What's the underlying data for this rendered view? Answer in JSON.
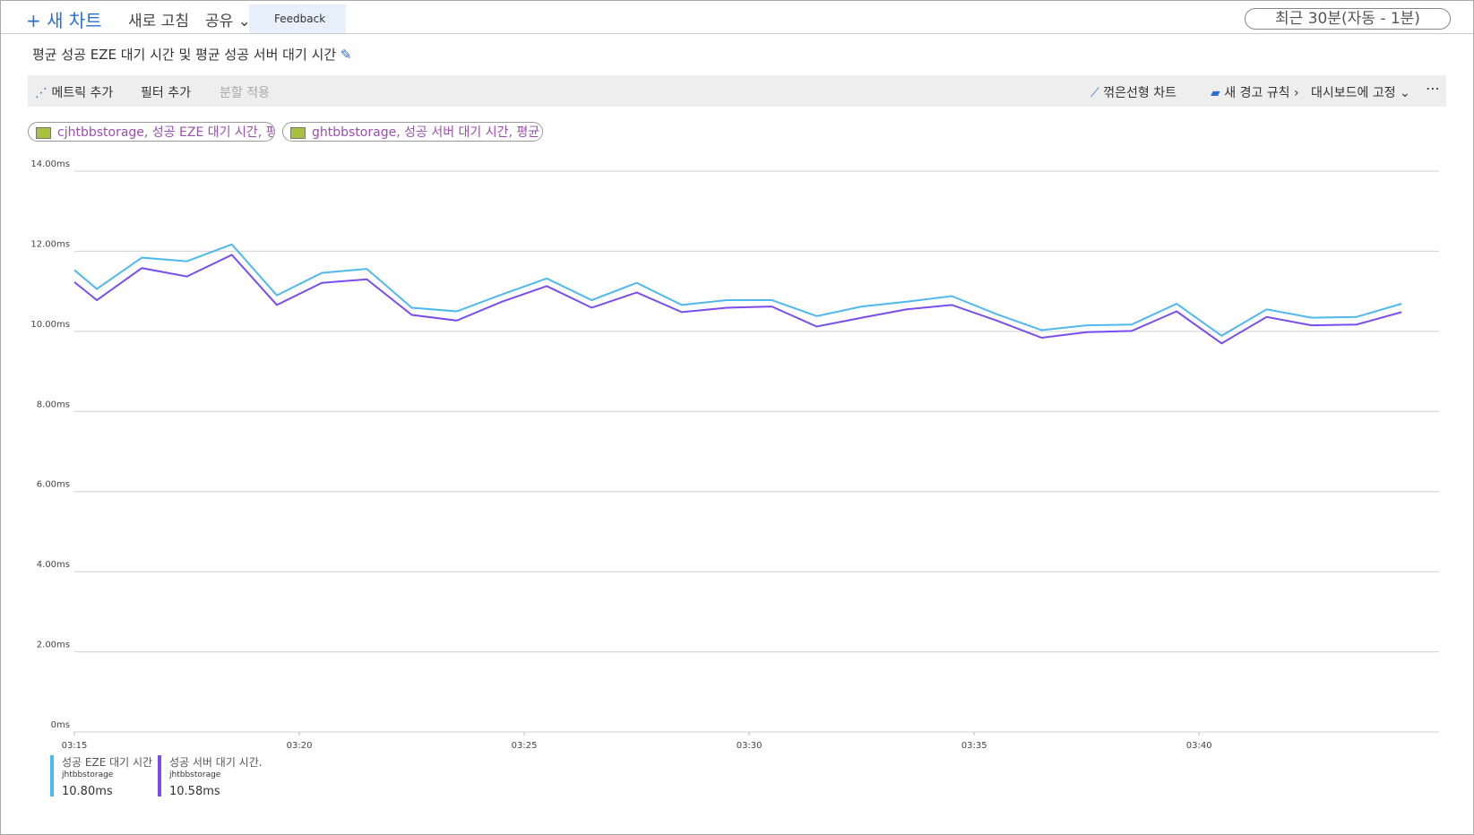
{
  "toolbar": {
    "new_chart": "새 차트",
    "refresh": "새로 고침",
    "share": "공유",
    "feedback": "Feedback",
    "time_range": "최근 30분(자동 - 1분)"
  },
  "chart_title": "평균 성공 EZE 대기 시간 및 평균 성공 서버 대기 시간",
  "chart_toolbar": {
    "add_metric": "메트릭 추가",
    "add_filter": "필터 추가",
    "apply_splitting": "분할 적용",
    "chart_type": "꺾은선형 차트",
    "new_alert": "새 경고 규칙",
    "pin": "대시보드에 고정"
  },
  "metric_chips": [
    "cjhtbbstorage, 성공 EZE 대기 시간, 평균",
    "ghtbbstorage, 성공 서버 대기 시간, 평균"
  ],
  "legend": [
    {
      "resource": "jhtbbstorage",
      "value": "10.80ms"
    },
    {
      "resource": "jhtbbstorage",
      "value": "10.58ms"
    }
  ],
  "chart_data": {
    "type": "line",
    "x": [
      "03:15:00",
      "03:15:30",
      "03:16:30",
      "03:17:30",
      "03:18:30",
      "03:19:30",
      "03:20:30",
      "03:21:30",
      "03:22:30",
      "03:23:30",
      "03:24:30",
      "03:25:30",
      "03:26:30",
      "03:27:30",
      "03:28:30",
      "03:29:30",
      "03:30:30",
      "03:31:30",
      "03:32:30",
      "03:33:30",
      "03:34:30",
      "03:35:30",
      "03:36:30",
      "03:37:30",
      "03:38:30",
      "03:39:30",
      "03:40:30",
      "03:41:30",
      "03:42:30",
      "03:43:30",
      "03:44:30"
    ],
    "xlim": [
      "03:15:00",
      "03:45:20"
    ],
    "xticks": [
      {
        "value": "03:15:00",
        "label": "03:15"
      },
      {
        "value": "03:20:00",
        "label": "03:20"
      },
      {
        "value": "03:25:00",
        "label": "03:25"
      },
      {
        "value": "03:30:00",
        "label": "03:30"
      },
      {
        "value": "03:35:00",
        "label": "03:35"
      },
      {
        "value": "03:40:00",
        "label": "03:40"
      }
    ],
    "ylim": [
      0,
      14
    ],
    "yticks": [
      {
        "value": 0,
        "label": "0ms"
      },
      {
        "value": 2,
        "label": "2.00ms"
      },
      {
        "value": 4,
        "label": "4.00ms"
      },
      {
        "value": 6,
        "label": "6.00ms"
      },
      {
        "value": 8,
        "label": "8.00ms"
      },
      {
        "value": 10,
        "label": "10.00ms"
      },
      {
        "value": 12,
        "label": "12.00ms"
      },
      {
        "value": 14,
        "label": "14.00ms"
      }
    ],
    "grid": true,
    "series": [
      {
        "name": "성공 EZE 대기 시간",
        "color": "#4fb8f0",
        "values": [
          11.53,
          11.06,
          11.84,
          11.75,
          12.17,
          10.9,
          11.46,
          11.56,
          10.59,
          10.5,
          10.92,
          11.32,
          10.78,
          11.21,
          10.66,
          10.78,
          10.78,
          10.38,
          10.62,
          10.74,
          10.88,
          10.43,
          10.03,
          10.15,
          10.17,
          10.69,
          9.89,
          10.55,
          10.34,
          10.36,
          10.69
        ]
      },
      {
        "name": "성공 서버 대기 시간.",
        "color": "#7b4cf0",
        "values": [
          11.23,
          10.78,
          11.58,
          11.37,
          11.91,
          10.66,
          11.21,
          11.3,
          10.41,
          10.27,
          10.74,
          11.13,
          10.59,
          10.97,
          10.48,
          10.59,
          10.62,
          10.12,
          10.34,
          10.55,
          10.66,
          10.27,
          9.84,
          9.98,
          10.01,
          10.5,
          9.7,
          10.36,
          10.15,
          10.17,
          10.48
        ]
      }
    ]
  }
}
